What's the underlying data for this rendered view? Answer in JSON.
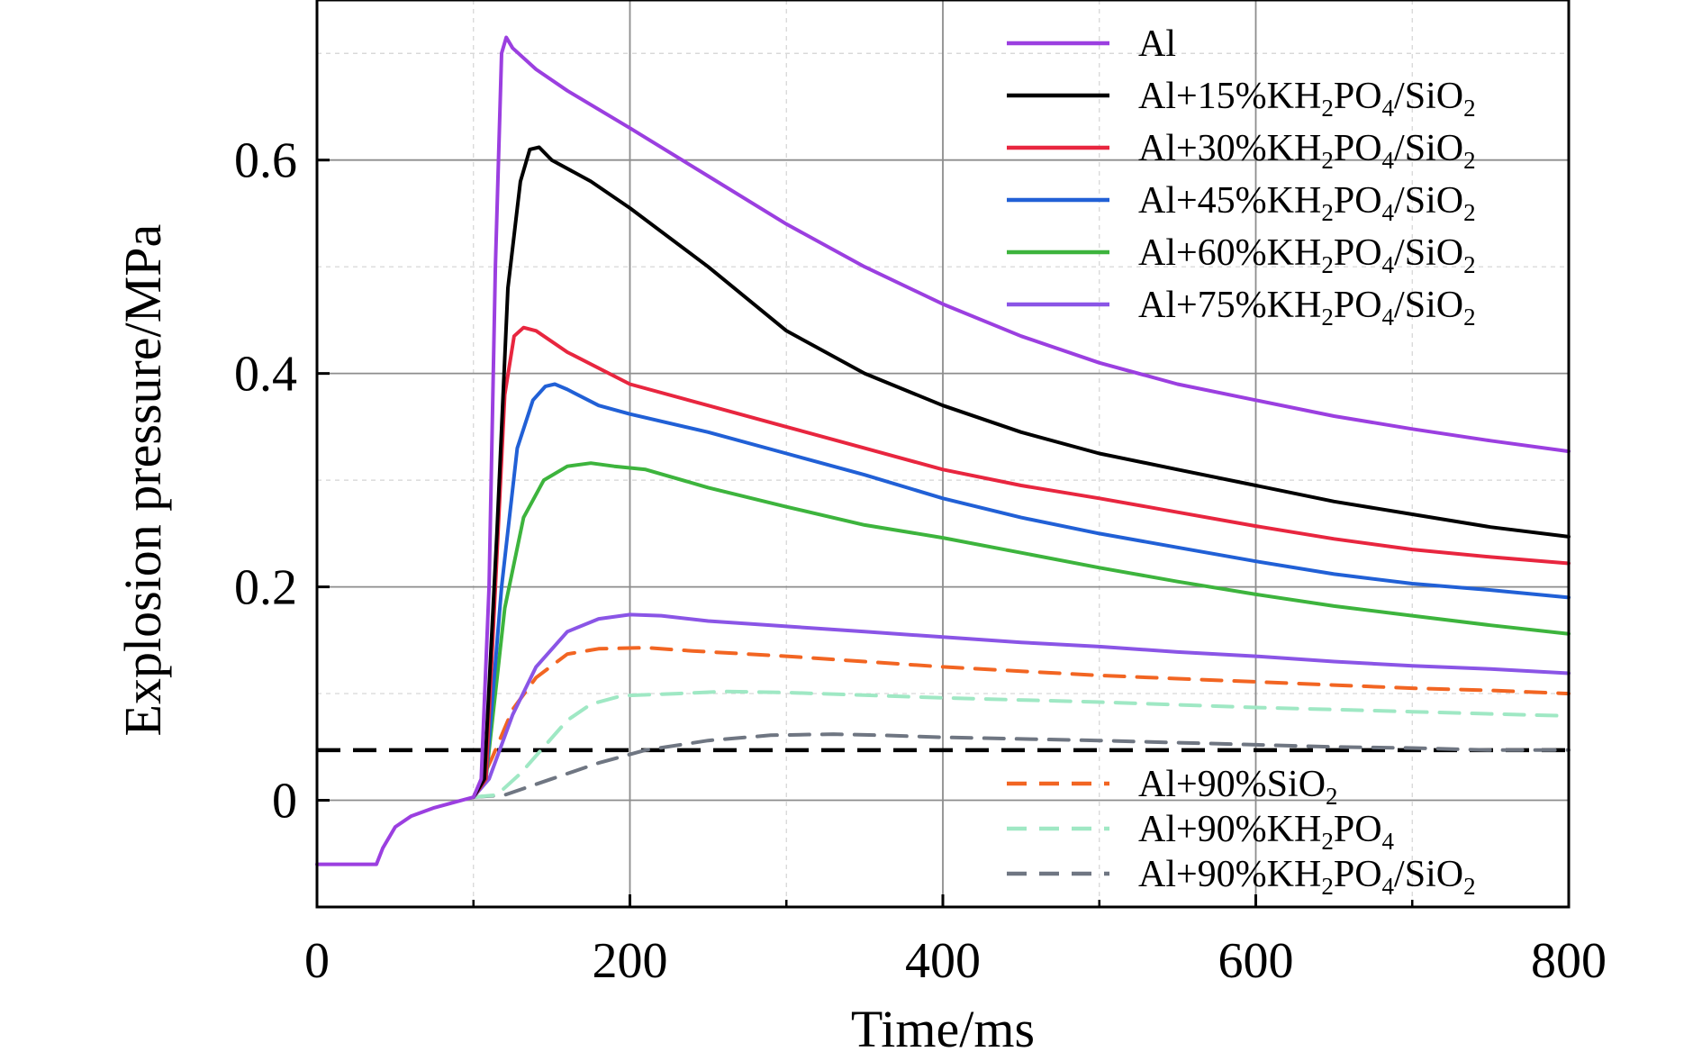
{
  "chart_data": {
    "type": "line",
    "xlabel": "Time/ms",
    "ylabel": "Explosion pressure/MPa",
    "xlim": [
      0,
      800
    ],
    "ylim": [
      -0.1,
      0.75
    ],
    "x_ticks": [
      "0",
      "200",
      "400",
      "600",
      "800"
    ],
    "y_ticks": [
      "0",
      "0.2",
      "0.4",
      "0.6"
    ],
    "x_tick_values": [
      0,
      200,
      400,
      600,
      800
    ],
    "y_tick_values": [
      0,
      0.2,
      0.4,
      0.6
    ],
    "grid": true,
    "legend_upper": "top-right",
    "legend_lower": "bottom-right",
    "reference_line": {
      "y": 0.047,
      "style": "dashed",
      "color": "#000000"
    },
    "series": [
      {
        "name": "Al",
        "legend": [
          "Al"
        ],
        "color": "#9b3fe0",
        "dash": "solid",
        "legend_group": "upper",
        "points": [
          [
            0,
            -0.06
          ],
          [
            38,
            -0.06
          ],
          [
            42,
            -0.045
          ],
          [
            50,
            -0.025
          ],
          [
            60,
            -0.015
          ],
          [
            75,
            -0.007
          ],
          [
            90,
            -0.001
          ],
          [
            100,
            0.003
          ],
          [
            105,
            0.02
          ],
          [
            110,
            0.2
          ],
          [
            114,
            0.5
          ],
          [
            118,
            0.7
          ],
          [
            121,
            0.715
          ],
          [
            125,
            0.705
          ],
          [
            140,
            0.685
          ],
          [
            160,
            0.665
          ],
          [
            200,
            0.63
          ],
          [
            250,
            0.585
          ],
          [
            300,
            0.54
          ],
          [
            350,
            0.5
          ],
          [
            400,
            0.465
          ],
          [
            450,
            0.435
          ],
          [
            500,
            0.41
          ],
          [
            550,
            0.39
          ],
          [
            600,
            0.375
          ],
          [
            650,
            0.36
          ],
          [
            700,
            0.348
          ],
          [
            750,
            0.337
          ],
          [
            800,
            0.327
          ]
        ]
      },
      {
        "name": "Al+15%KH2PO4/SiO2",
        "legend": [
          "Al+15%KH",
          "2",
          "PO",
          "4",
          "/SiO",
          "2"
        ],
        "color": "#000000",
        "dash": "solid",
        "legend_group": "upper",
        "points": [
          [
            100,
            0.003
          ],
          [
            107,
            0.02
          ],
          [
            115,
            0.25
          ],
          [
            122,
            0.48
          ],
          [
            130,
            0.58
          ],
          [
            136,
            0.61
          ],
          [
            142,
            0.612
          ],
          [
            150,
            0.6
          ],
          [
            175,
            0.58
          ],
          [
            200,
            0.555
          ],
          [
            250,
            0.5
          ],
          [
            300,
            0.44
          ],
          [
            350,
            0.4
          ],
          [
            400,
            0.37
          ],
          [
            450,
            0.345
          ],
          [
            500,
            0.325
          ],
          [
            550,
            0.31
          ],
          [
            600,
            0.295
          ],
          [
            650,
            0.28
          ],
          [
            700,
            0.268
          ],
          [
            750,
            0.256
          ],
          [
            800,
            0.247
          ]
        ]
      },
      {
        "name": "Al+30%KH2PO4/SiO2",
        "legend": [
          "Al+30%KH",
          "2",
          "PO",
          "4",
          "/SiO",
          "2"
        ],
        "color": "#e8263f",
        "dash": "solid",
        "legend_group": "upper",
        "points": [
          [
            100,
            0.003
          ],
          [
            108,
            0.02
          ],
          [
            114,
            0.2
          ],
          [
            120,
            0.38
          ],
          [
            126,
            0.435
          ],
          [
            132,
            0.443
          ],
          [
            140,
            0.44
          ],
          [
            160,
            0.42
          ],
          [
            200,
            0.39
          ],
          [
            250,
            0.37
          ],
          [
            300,
            0.35
          ],
          [
            350,
            0.33
          ],
          [
            400,
            0.31
          ],
          [
            450,
            0.295
          ],
          [
            500,
            0.283
          ],
          [
            550,
            0.27
          ],
          [
            600,
            0.257
          ],
          [
            650,
            0.245
          ],
          [
            700,
            0.235
          ],
          [
            750,
            0.228
          ],
          [
            800,
            0.222
          ]
        ]
      },
      {
        "name": "Al+45%KH2PO4/SiO2",
        "legend": [
          "Al+45%KH",
          "2",
          "PO",
          "4",
          "/SiO",
          "2"
        ],
        "color": "#2160d6",
        "dash": "solid",
        "legend_group": "upper",
        "points": [
          [
            100,
            0.003
          ],
          [
            108,
            0.02
          ],
          [
            118,
            0.2
          ],
          [
            128,
            0.33
          ],
          [
            138,
            0.375
          ],
          [
            146,
            0.388
          ],
          [
            152,
            0.39
          ],
          [
            160,
            0.385
          ],
          [
            180,
            0.37
          ],
          [
            200,
            0.362
          ],
          [
            250,
            0.345
          ],
          [
            300,
            0.325
          ],
          [
            350,
            0.305
          ],
          [
            400,
            0.283
          ],
          [
            450,
            0.265
          ],
          [
            500,
            0.25
          ],
          [
            550,
            0.237
          ],
          [
            600,
            0.224
          ],
          [
            650,
            0.212
          ],
          [
            700,
            0.203
          ],
          [
            750,
            0.197
          ],
          [
            800,
            0.19
          ]
        ]
      },
      {
        "name": "Al+60%KH2PO4/SiO2",
        "legend": [
          "Al+60%KH",
          "2",
          "PO",
          "4",
          "/SiO",
          "2"
        ],
        "color": "#3db43d",
        "dash": "solid",
        "legend_group": "upper",
        "points": [
          [
            100,
            0.003
          ],
          [
            108,
            0.02
          ],
          [
            120,
            0.18
          ],
          [
            132,
            0.265
          ],
          [
            145,
            0.3
          ],
          [
            160,
            0.313
          ],
          [
            175,
            0.316
          ],
          [
            190,
            0.313
          ],
          [
            210,
            0.31
          ],
          [
            250,
            0.293
          ],
          [
            300,
            0.275
          ],
          [
            350,
            0.258
          ],
          [
            400,
            0.246
          ],
          [
            450,
            0.232
          ],
          [
            500,
            0.218
          ],
          [
            550,
            0.205
          ],
          [
            600,
            0.193
          ],
          [
            650,
            0.182
          ],
          [
            700,
            0.173
          ],
          [
            750,
            0.164
          ],
          [
            800,
            0.156
          ]
        ]
      },
      {
        "name": "Al+75%KH2PO4/SiO2",
        "legend": [
          "Al+75%KH",
          "2",
          "PO",
          "4",
          "/SiO",
          "2"
        ],
        "color": "#8a55e6",
        "dash": "solid",
        "legend_group": "upper",
        "points": [
          [
            100,
            0.003
          ],
          [
            110,
            0.02
          ],
          [
            125,
            0.08
          ],
          [
            140,
            0.125
          ],
          [
            160,
            0.158
          ],
          [
            180,
            0.17
          ],
          [
            200,
            0.174
          ],
          [
            220,
            0.173
          ],
          [
            250,
            0.168
          ],
          [
            300,
            0.163
          ],
          [
            350,
            0.158
          ],
          [
            400,
            0.153
          ],
          [
            450,
            0.148
          ],
          [
            500,
            0.144
          ],
          [
            550,
            0.139
          ],
          [
            600,
            0.135
          ],
          [
            650,
            0.13
          ],
          [
            700,
            0.126
          ],
          [
            750,
            0.123
          ],
          [
            800,
            0.119
          ]
        ]
      },
      {
        "name": "Al+90%SiO2",
        "legend": [
          "Al+90%SiO",
          "2"
        ],
        "color": "#f26522",
        "dash": "dashed",
        "legend_group": "lower",
        "points": [
          [
            100,
            0.003
          ],
          [
            112,
            0.04
          ],
          [
            125,
            0.085
          ],
          [
            140,
            0.115
          ],
          [
            160,
            0.137
          ],
          [
            180,
            0.142
          ],
          [
            210,
            0.143
          ],
          [
            240,
            0.14
          ],
          [
            300,
            0.135
          ],
          [
            350,
            0.13
          ],
          [
            400,
            0.125
          ],
          [
            450,
            0.121
          ],
          [
            500,
            0.117
          ],
          [
            550,
            0.114
          ],
          [
            600,
            0.111
          ],
          [
            650,
            0.108
          ],
          [
            700,
            0.105
          ],
          [
            750,
            0.103
          ],
          [
            800,
            0.1
          ]
        ]
      },
      {
        "name": "Al+90%KH2PO4",
        "legend": [
          "Al+90%KH",
          "2",
          "PO",
          "4"
        ],
        "color": "#9fe8c4",
        "dash": "dashed",
        "legend_group": "lower",
        "points": [
          [
            100,
            0.003
          ],
          [
            115,
            0.005
          ],
          [
            130,
            0.025
          ],
          [
            145,
            0.05
          ],
          [
            160,
            0.075
          ],
          [
            175,
            0.09
          ],
          [
            195,
            0.098
          ],
          [
            230,
            0.1
          ],
          [
            260,
            0.102
          ],
          [
            300,
            0.101
          ],
          [
            400,
            0.096
          ],
          [
            500,
            0.092
          ],
          [
            600,
            0.087
          ],
          [
            650,
            0.085
          ],
          [
            700,
            0.083
          ],
          [
            750,
            0.081
          ],
          [
            800,
            0.079
          ]
        ]
      },
      {
        "name": "Al+90%KH2PO4/SiO2",
        "legend": [
          "Al+90%KH",
          "2",
          "PO",
          "4",
          "/SiO",
          "2"
        ],
        "color": "#6f7682",
        "dash": "dashed",
        "legend_group": "lower",
        "points": [
          [
            100,
            0.003
          ],
          [
            120,
            0.005
          ],
          [
            150,
            0.02
          ],
          [
            180,
            0.035
          ],
          [
            210,
            0.047
          ],
          [
            250,
            0.056
          ],
          [
            290,
            0.061
          ],
          [
            330,
            0.062
          ],
          [
            360,
            0.061
          ],
          [
            400,
            0.059
          ],
          [
            500,
            0.056
          ],
          [
            600,
            0.052
          ],
          [
            650,
            0.05
          ],
          [
            700,
            0.049
          ],
          [
            750,
            0.047
          ],
          [
            800,
            0.047
          ]
        ]
      }
    ]
  }
}
